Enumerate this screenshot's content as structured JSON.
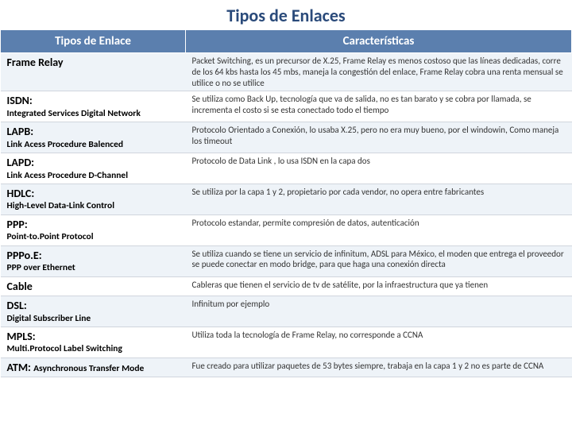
{
  "title": "Tipos de Enlaces",
  "headers": {
    "col1": "Tipos de Enlace",
    "col2": "Características"
  },
  "rows": [
    {
      "main": "Frame Relay",
      "sub": "",
      "desc": "Packet Switching, es un precursor de X.25, Frame Relay es menos costoso que las líneas dedicadas, corre de los 64 kbs hasta los 45 mbs, maneja la congestión del enlace, Frame Relay cobra una renta mensual se utilice o no se utilice",
      "alt": true
    },
    {
      "main": "ISDN:",
      "sub": "Integrated Services Digital Network",
      "desc": "Se utiliza como Back Up, tecnología que va de salida, no es tan barato y se cobra por llamada, se incrementa el costo si se esta conectado todo el tiempo",
      "alt": false
    },
    {
      "main": "LAPB:",
      "sub": "Link Acess Procedure Balenced",
      "desc": "Protocolo Orientado a Conexión, lo usaba X.25, pero no era muy bueno, por el windowin, Como maneja los timeout",
      "alt": true
    },
    {
      "main": "LAPD:",
      "sub": "Link Acess Procedure D-Channel",
      "desc": "Protocolo de Data Link , lo usa ISDN en la capa dos",
      "alt": false
    },
    {
      "main": "HDLC:",
      "sub": "High-Level Data-Link Control",
      "desc": "Se utiliza por la capa 1 y 2, propietario por cada vendor, no opera entre fabricantes",
      "alt": true
    },
    {
      "main": "PPP:",
      "sub": "Point-to.Point Protocol",
      "desc": "Protocolo estandar, permite compresión de datos, autenticación",
      "alt": false
    },
    {
      "main": "PPPo.E:",
      "sub": "PPP over Ethernet",
      "desc": "Se utiliza cuando se tiene un servicio de infinitum, ADSL para México, el moden que entrega el proveedor se puede conectar en modo bridge, para que haga una conexión directa",
      "alt": true
    },
    {
      "main": "Cable",
      "sub": "",
      "desc": "Cableras que tienen el servicio de tv de satélite, por la infraestructura que ya tienen",
      "alt": false
    },
    {
      "main": "DSL:",
      "sub": "Digital Subscriber Line",
      "desc": "Infinitum por ejemplo",
      "alt": true
    },
    {
      "main": "MPLS:",
      "sub": "Multi.Protocol Label Switching",
      "desc": "Utiliza toda la tecnología de Frame Relay, no corresponde a CCNA",
      "alt": false
    },
    {
      "main": "ATM:",
      "sub_inline": "Asynchronous Transfer Mode",
      "desc": "Fue creado para utilizar paquetes de 53 bytes siempre, trabaja en la capa 1 y 2 no es parte de CCNA",
      "alt": true
    }
  ]
}
